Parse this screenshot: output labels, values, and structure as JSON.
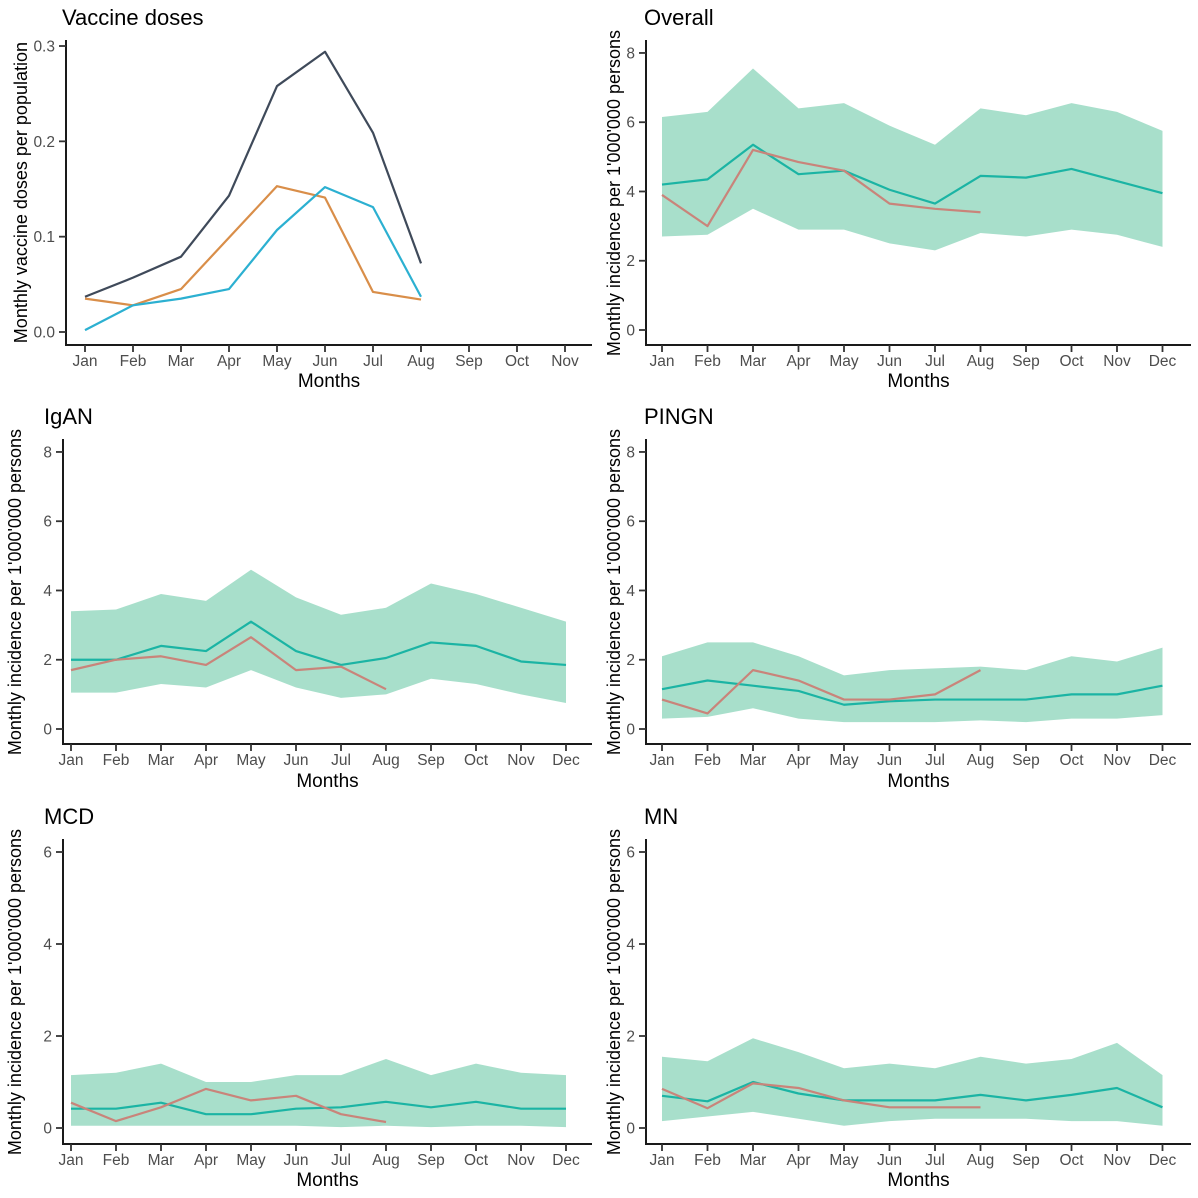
{
  "figure": {
    "xlabel": "Months",
    "ylabel_vaccine": "Monthly vaccine doses per population",
    "ylabel_incidence": "Monthly incidence per 1'000'000 persons",
    "legend": "none",
    "grid": false,
    "colors": {
      "ribbon": "#a8dfcb",
      "teal_line": "#1bb4a4",
      "salmon_line": "#c9847a",
      "navy_line": "#3f4a5a",
      "orange_line": "#d98e49",
      "cyan_line": "#2cb0d1",
      "tick_text": "#4d4d4d",
      "axis": "#1a1a1a"
    }
  },
  "chart_data": [
    {
      "key": "vaccine-doses",
      "type": "line",
      "title": "Vaccine doses",
      "xlabel": "Months",
      "ylabel": "Monthly vaccine doses per population",
      "categories": [
        "Jan",
        "Feb",
        "Mar",
        "Apr",
        "May",
        "Jun",
        "Jul",
        "Aug",
        "Sep",
        "Oct",
        "Nov"
      ],
      "yticks": [
        0.0,
        0.1,
        0.2,
        0.3
      ],
      "ytick_labels": [
        "0.0",
        "0.1",
        "0.2",
        "0.3"
      ],
      "ylim": [
        0,
        0.3
      ],
      "series": [
        {
          "name": "navy",
          "color": "#3f4a5a",
          "values": [
            0.037,
            0.057,
            0.079,
            0.143,
            0.258,
            0.294,
            0.209,
            0.072
          ]
        },
        {
          "name": "orange",
          "color": "#d98e49",
          "values": [
            0.035,
            0.028,
            0.045,
            0.099,
            0.153,
            0.141,
            0.042,
            0.034
          ]
        },
        {
          "name": "cyan",
          "color": "#2cb0d1",
          "values": [
            0.002,
            0.028,
            0.035,
            0.045,
            0.107,
            0.152,
            0.131,
            0.037
          ]
        }
      ]
    },
    {
      "key": "overall",
      "type": "line",
      "title": "Overall",
      "xlabel": "Months",
      "ylabel": "Monthly incidence per 1'000'000 persons",
      "categories": [
        "Jan",
        "Feb",
        "Mar",
        "Apr",
        "May",
        "Jun",
        "Jul",
        "Aug",
        "Sep",
        "Oct",
        "Nov",
        "Dec"
      ],
      "yticks": [
        0,
        2,
        4,
        6,
        8
      ],
      "ytick_labels": [
        "0",
        "2",
        "4",
        "6",
        "8"
      ],
      "ylim": [
        0,
        8
      ],
      "ribbon": {
        "color": "#a8dfcb",
        "upper": [
          6.15,
          6.3,
          7.55,
          6.4,
          6.55,
          5.9,
          5.35,
          6.4,
          6.2,
          6.55,
          6.3,
          5.75
        ],
        "lower": [
          2.7,
          2.75,
          3.5,
          2.9,
          2.9,
          2.5,
          2.3,
          2.8,
          2.7,
          2.9,
          2.75,
          2.4
        ]
      },
      "series": [
        {
          "name": "teal",
          "color": "#1bb4a4",
          "values": [
            4.2,
            4.35,
            5.35,
            4.5,
            4.6,
            4.05,
            3.65,
            4.45,
            4.4,
            4.65,
            4.3,
            3.95
          ]
        },
        {
          "name": "salmon",
          "color": "#c9847a",
          "values": [
            3.9,
            3.0,
            5.2,
            4.85,
            4.6,
            3.65,
            3.5,
            3.4
          ]
        }
      ]
    },
    {
      "key": "igan",
      "type": "line",
      "title": "IgAN",
      "xlabel": "Months",
      "ylabel": "Monthly incidence per 1'000'000 persons",
      "categories": [
        "Jan",
        "Feb",
        "Mar",
        "Apr",
        "May",
        "Jun",
        "Jul",
        "Aug",
        "Sep",
        "Oct",
        "Nov",
        "Dec"
      ],
      "yticks": [
        0,
        2,
        4,
        6,
        8
      ],
      "ytick_labels": [
        "0",
        "2",
        "4",
        "6",
        "8"
      ],
      "ylim": [
        0,
        8
      ],
      "ribbon": {
        "color": "#a8dfcb",
        "upper": [
          3.4,
          3.45,
          3.9,
          3.7,
          4.6,
          3.8,
          3.3,
          3.5,
          4.2,
          3.9,
          3.5,
          3.1
        ],
        "lower": [
          1.05,
          1.05,
          1.3,
          1.2,
          1.7,
          1.2,
          0.9,
          1.0,
          1.45,
          1.3,
          1.0,
          0.75
        ]
      },
      "series": [
        {
          "name": "teal",
          "color": "#1bb4a4",
          "values": [
            2.0,
            2.0,
            2.4,
            2.25,
            3.1,
            2.25,
            1.85,
            2.05,
            2.5,
            2.4,
            1.95,
            1.85
          ]
        },
        {
          "name": "salmon",
          "color": "#c9847a",
          "values": [
            1.7,
            2.0,
            2.1,
            1.85,
            2.65,
            1.7,
            1.8,
            1.15
          ]
        }
      ]
    },
    {
      "key": "pingn",
      "type": "line",
      "title": "PINGN",
      "xlabel": "Months",
      "ylabel": "Monthly incidence per 1'000'000 persons",
      "categories": [
        "Jan",
        "Feb",
        "Mar",
        "Apr",
        "May",
        "Jun",
        "Jul",
        "Aug",
        "Sep",
        "Oct",
        "Nov",
        "Dec"
      ],
      "yticks": [
        0,
        2,
        4,
        6,
        8
      ],
      "ytick_labels": [
        "0",
        "2",
        "4",
        "6",
        "8"
      ],
      "ylim": [
        0,
        8
      ],
      "ribbon": {
        "color": "#a8dfcb",
        "upper": [
          2.1,
          2.5,
          2.5,
          2.1,
          1.55,
          1.7,
          1.75,
          1.8,
          1.7,
          2.1,
          1.95,
          2.35
        ],
        "lower": [
          0.3,
          0.35,
          0.6,
          0.3,
          0.2,
          0.2,
          0.2,
          0.25,
          0.2,
          0.3,
          0.3,
          0.4
        ]
      },
      "series": [
        {
          "name": "teal",
          "color": "#1bb4a4",
          "values": [
            1.15,
            1.4,
            1.25,
            1.1,
            0.7,
            0.8,
            0.85,
            0.85,
            0.85,
            1.0,
            1.0,
            1.25
          ]
        },
        {
          "name": "salmon",
          "color": "#c9847a",
          "values": [
            0.85,
            0.45,
            1.7,
            1.4,
            0.85,
            0.85,
            1.0,
            1.7
          ]
        }
      ]
    },
    {
      "key": "mcd",
      "type": "line",
      "title": "MCD",
      "xlabel": "Months",
      "ylabel": "Monthly incidence per 1'000'000 persons",
      "categories": [
        "Jan",
        "Feb",
        "Mar",
        "Apr",
        "May",
        "Jun",
        "Jul",
        "Aug",
        "Sep",
        "Oct",
        "Nov",
        "Dec"
      ],
      "yticks": [
        0,
        2,
        4,
        6
      ],
      "ytick_labels": [
        "0",
        "2",
        "4",
        "6"
      ],
      "ylim": [
        0,
        6
      ],
      "ribbon": {
        "color": "#a8dfcb",
        "upper": [
          1.15,
          1.2,
          1.4,
          1.0,
          1.0,
          1.15,
          1.15,
          1.5,
          1.15,
          1.4,
          1.2,
          1.15
        ],
        "lower": [
          0.05,
          0.05,
          0.05,
          0.05,
          0.05,
          0.05,
          0.02,
          0.05,
          0.02,
          0.05,
          0.05,
          0.02
        ]
      },
      "series": [
        {
          "name": "teal",
          "color": "#1bb4a4",
          "values": [
            0.42,
            0.42,
            0.55,
            0.3,
            0.3,
            0.42,
            0.45,
            0.57,
            0.45,
            0.57,
            0.42,
            0.42
          ]
        },
        {
          "name": "salmon",
          "color": "#c9847a",
          "values": [
            0.55,
            0.15,
            0.45,
            0.85,
            0.6,
            0.7,
            0.3,
            0.13
          ]
        }
      ]
    },
    {
      "key": "mn",
      "type": "line",
      "title": "MN",
      "xlabel": "Months",
      "ylabel": "Monthly incidence per 1'000'000 persons",
      "categories": [
        "Jan",
        "Feb",
        "Mar",
        "Apr",
        "May",
        "Jun",
        "Jul",
        "Aug",
        "Sep",
        "Oct",
        "Nov",
        "Dec"
      ],
      "yticks": [
        0,
        2,
        4,
        6
      ],
      "ytick_labels": [
        "0",
        "2",
        "4",
        "6"
      ],
      "ylim": [
        0,
        6
      ],
      "ribbon": {
        "color": "#a8dfcb",
        "upper": [
          1.55,
          1.45,
          1.95,
          1.65,
          1.3,
          1.4,
          1.3,
          1.55,
          1.4,
          1.5,
          1.85,
          1.15
        ],
        "lower": [
          0.15,
          0.25,
          0.35,
          0.2,
          0.05,
          0.15,
          0.2,
          0.2,
          0.2,
          0.15,
          0.15,
          0.05
        ]
      },
      "series": [
        {
          "name": "teal",
          "color": "#1bb4a4",
          "values": [
            0.7,
            0.58,
            1.0,
            0.75,
            0.6,
            0.6,
            0.6,
            0.72,
            0.6,
            0.72,
            0.87,
            0.45
          ]
        },
        {
          "name": "salmon",
          "color": "#c9847a",
          "values": [
            0.85,
            0.43,
            0.97,
            0.87,
            0.6,
            0.45,
            0.45,
            0.45
          ]
        }
      ]
    }
  ]
}
